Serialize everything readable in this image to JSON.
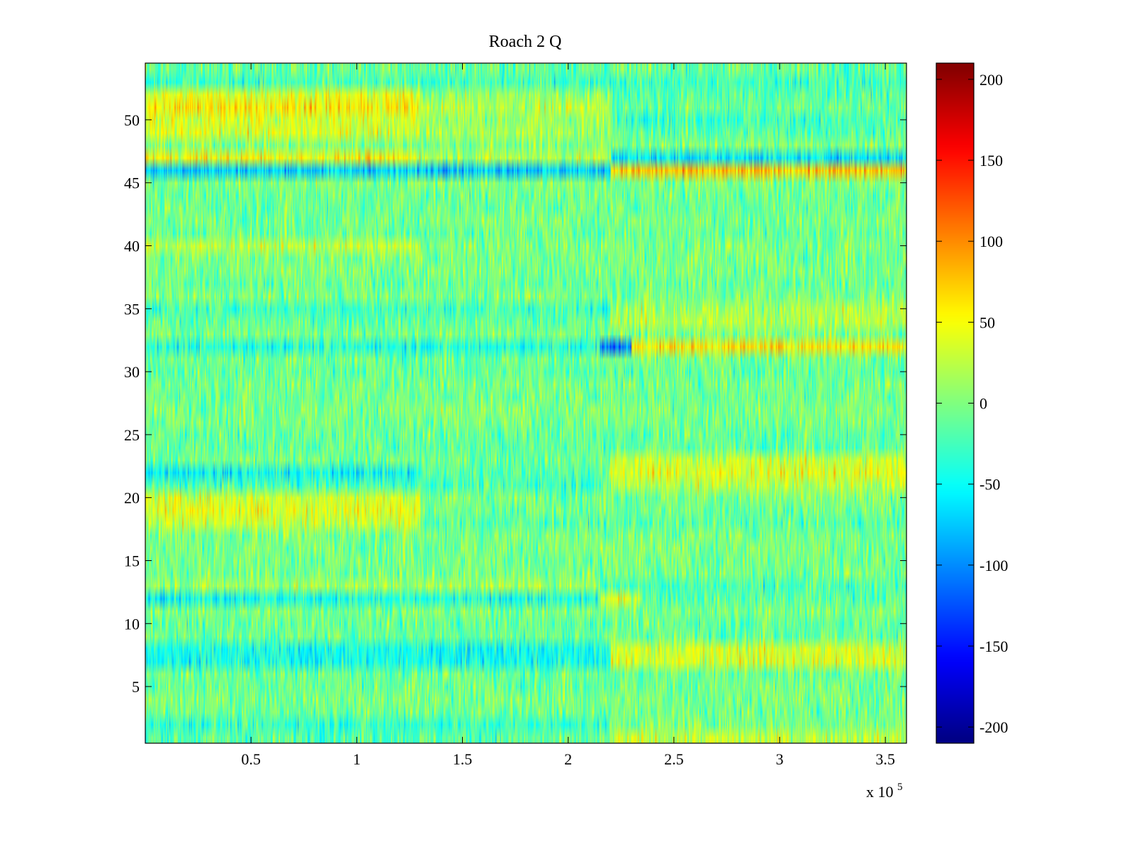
{
  "chart_data": {
    "type": "heatmap",
    "title": "Roach 2 Q",
    "xlabel": "",
    "ylabel": "",
    "x_multiplier_label": {
      "base": "x 10",
      "exponent": "5"
    },
    "xlim": [
      0,
      3.6
    ],
    "ylim": [
      0.5,
      54.5
    ],
    "x_ticks": [
      0.5,
      1,
      1.5,
      2,
      2.5,
      3,
      3.5
    ],
    "x_tick_labels": [
      "0.5",
      "1",
      "1.5",
      "2",
      "2.5",
      "3",
      "3.5"
    ],
    "y_ticks": [
      5,
      10,
      15,
      20,
      25,
      30,
      35,
      40,
      45,
      50
    ],
    "y_tick_labels": [
      "5",
      "10",
      "15",
      "20",
      "25",
      "30",
      "35",
      "40",
      "45",
      "50"
    ],
    "rows": 54,
    "colormap": "jet",
    "colorbar": {
      "range": [
        -210,
        210
      ],
      "ticks": [
        -200,
        -150,
        -100,
        -50,
        0,
        50,
        100,
        150,
        200
      ],
      "tick_labels": [
        "-200",
        "-150",
        "-100",
        "-50",
        "0",
        "50",
        "100",
        "150",
        "200"
      ]
    },
    "row_means": [
      {
        "row": 1,
        "segments": [
          {
            "x0": 0.0,
            "x1": 2.2,
            "mean": -20
          },
          {
            "x0": 2.2,
            "x1": 3.6,
            "mean": 20
          }
        ]
      },
      {
        "row": 2,
        "segments": [
          {
            "x0": 0.0,
            "x1": 2.2,
            "mean": -35
          },
          {
            "x0": 2.2,
            "x1": 3.6,
            "mean": -5
          }
        ]
      },
      {
        "row": 7,
        "segments": [
          {
            "x0": 0.0,
            "x1": 2.2,
            "mean": -40
          },
          {
            "x0": 2.2,
            "x1": 3.6,
            "mean": 40
          }
        ]
      },
      {
        "row": 8,
        "segments": [
          {
            "x0": 0.0,
            "x1": 2.2,
            "mean": -45
          },
          {
            "x0": 2.2,
            "x1": 3.6,
            "mean": 35
          }
        ]
      },
      {
        "row": 12,
        "segments": [
          {
            "x0": 0.0,
            "x1": 2.15,
            "mean": -40
          },
          {
            "x0": 2.15,
            "x1": 2.35,
            "mean": 40
          },
          {
            "x0": 2.35,
            "x1": 3.6,
            "mean": -10
          }
        ]
      },
      {
        "row": 13,
        "segments": [
          {
            "x0": 0.0,
            "x1": 2.15,
            "mean": 15
          },
          {
            "x0": 2.15,
            "x1": 3.6,
            "mean": -20
          }
        ]
      },
      {
        "row": 18,
        "segments": [
          {
            "x0": 0.0,
            "x1": 1.3,
            "mean": 35
          },
          {
            "x0": 1.3,
            "x1": 3.6,
            "mean": -10
          }
        ]
      },
      {
        "row": 19,
        "segments": [
          {
            "x0": 0.0,
            "x1": 1.3,
            "mean": 45
          },
          {
            "x0": 1.3,
            "x1": 3.6,
            "mean": -5
          }
        ]
      },
      {
        "row": 20,
        "segments": [
          {
            "x0": 0.0,
            "x1": 1.3,
            "mean": 35
          },
          {
            "x0": 1.3,
            "x1": 3.6,
            "mean": 0
          }
        ]
      },
      {
        "row": 21,
        "segments": [
          {
            "x0": 0.0,
            "x1": 2.2,
            "mean": -20
          },
          {
            "x0": 2.2,
            "x1": 3.6,
            "mean": 25
          }
        ]
      },
      {
        "row": 22,
        "segments": [
          {
            "x0": 0.0,
            "x1": 1.3,
            "mean": -55
          },
          {
            "x0": 1.3,
            "x1": 2.2,
            "mean": -20
          },
          {
            "x0": 2.2,
            "x1": 3.6,
            "mean": 35
          }
        ]
      },
      {
        "row": 23,
        "segments": [
          {
            "x0": 0.0,
            "x1": 2.2,
            "mean": -10
          },
          {
            "x0": 2.2,
            "x1": 3.6,
            "mean": 25
          }
        ]
      },
      {
        "row": 32,
        "segments": [
          {
            "x0": 0.0,
            "x1": 2.15,
            "mean": -40
          },
          {
            "x0": 2.15,
            "x1": 2.3,
            "mean": -110
          },
          {
            "x0": 2.3,
            "x1": 3.6,
            "mean": 60
          }
        ]
      },
      {
        "row": 34,
        "segments": [
          {
            "x0": 0.0,
            "x1": 2.2,
            "mean": -10
          },
          {
            "x0": 2.2,
            "x1": 3.6,
            "mean": 25
          }
        ]
      },
      {
        "row": 35,
        "segments": [
          {
            "x0": 0.0,
            "x1": 2.2,
            "mean": -20
          },
          {
            "x0": 2.2,
            "x1": 3.6,
            "mean": 20
          }
        ]
      },
      {
        "row": 40,
        "segments": [
          {
            "x0": 0.0,
            "x1": 1.3,
            "mean": 25
          },
          {
            "x0": 1.3,
            "x1": 3.6,
            "mean": 0
          }
        ]
      },
      {
        "row": 46,
        "segments": [
          {
            "x0": 0.0,
            "x1": 2.2,
            "mean": -75
          },
          {
            "x0": 2.2,
            "x1": 3.6,
            "mean": 70
          }
        ]
      },
      {
        "row": 47,
        "segments": [
          {
            "x0": 0.0,
            "x1": 1.3,
            "mean": 55
          },
          {
            "x0": 1.3,
            "x1": 2.2,
            "mean": 25
          },
          {
            "x0": 2.2,
            "x1": 3.6,
            "mean": -55
          }
        ]
      },
      {
        "row": 49,
        "segments": [
          {
            "x0": 0.0,
            "x1": 1.3,
            "mean": 30
          },
          {
            "x0": 1.3,
            "x1": 2.2,
            "mean": 10
          },
          {
            "x0": 2.2,
            "x1": 3.6,
            "mean": -20
          }
        ]
      },
      {
        "row": 50,
        "segments": [
          {
            "x0": 0.0,
            "x1": 1.3,
            "mean": 40
          },
          {
            "x0": 1.3,
            "x1": 2.2,
            "mean": 15
          },
          {
            "x0": 2.2,
            "x1": 3.6,
            "mean": -20
          }
        ]
      },
      {
        "row": 51,
        "segments": [
          {
            "x0": 0.0,
            "x1": 1.3,
            "mean": 55
          },
          {
            "x0": 1.3,
            "x1": 2.2,
            "mean": 20
          },
          {
            "x0": 2.2,
            "x1": 3.6,
            "mean": -10
          }
        ]
      },
      {
        "row": 52,
        "segments": [
          {
            "x0": 0.0,
            "x1": 1.3,
            "mean": 45
          },
          {
            "x0": 1.3,
            "x1": 2.2,
            "mean": 15
          },
          {
            "x0": 2.2,
            "x1": 3.6,
            "mean": -10
          }
        ]
      },
      {
        "row": 53,
        "segments": [
          {
            "x0": 0.0,
            "x1": 3.6,
            "mean": -30
          }
        ]
      }
    ],
    "default_row_mean": -5,
    "noise_std": 22
  }
}
